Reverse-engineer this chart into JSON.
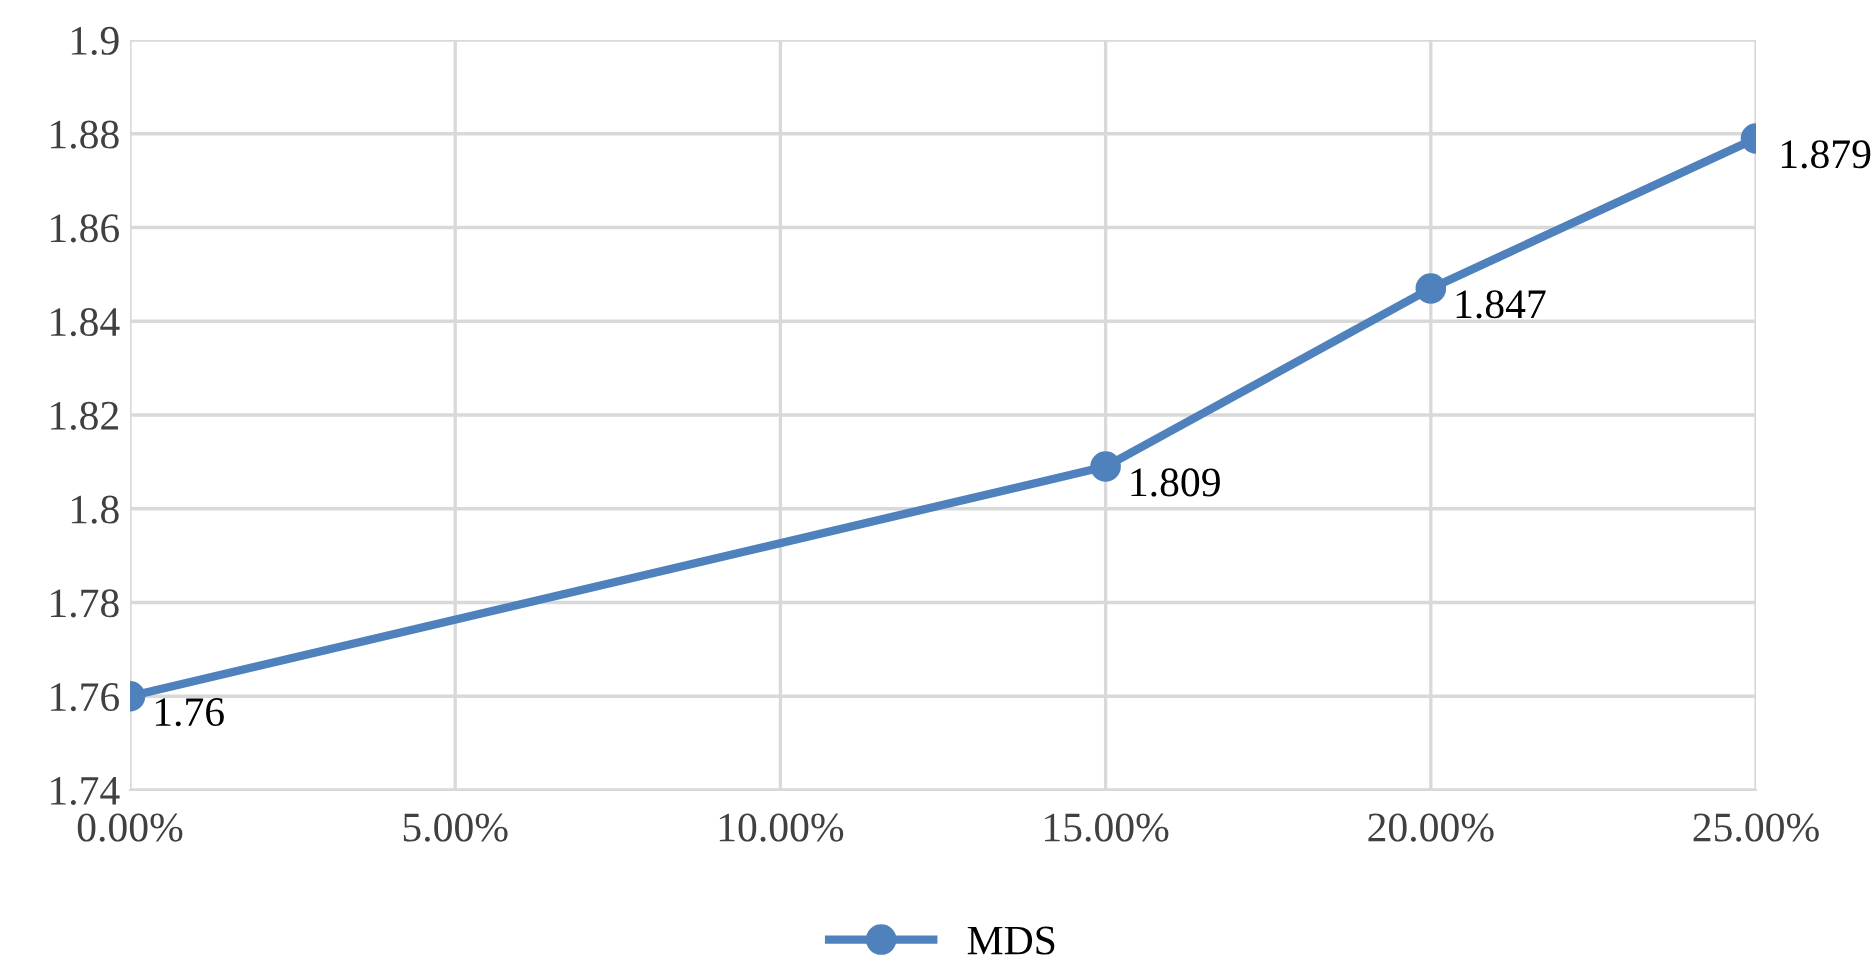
{
  "chart_data": {
    "type": "line",
    "x": [
      0,
      15,
      20,
      25
    ],
    "series": [
      {
        "name": "MDS",
        "color": "#4f81bd",
        "values": [
          1.76,
          1.809,
          1.847,
          1.879
        ]
      }
    ],
    "xlim": [
      0,
      25
    ],
    "xticks": [
      {
        "value": 0,
        "label": "0.00%"
      },
      {
        "value": 5,
        "label": "5.00%"
      },
      {
        "value": 10,
        "label": "10.00%"
      },
      {
        "value": 15,
        "label": "15.00%"
      },
      {
        "value": 20,
        "label": "20.00%"
      },
      {
        "value": 25,
        "label": "25.00%"
      }
    ],
    "ylim": [
      1.74,
      1.9
    ],
    "yticks": [
      1.74,
      1.76,
      1.78,
      1.8,
      1.82,
      1.84,
      1.86,
      1.88,
      1.9
    ],
    "grid": true,
    "legend": "bottom",
    "marker": "circle",
    "line_style": "solid",
    "data_labels": true
  }
}
